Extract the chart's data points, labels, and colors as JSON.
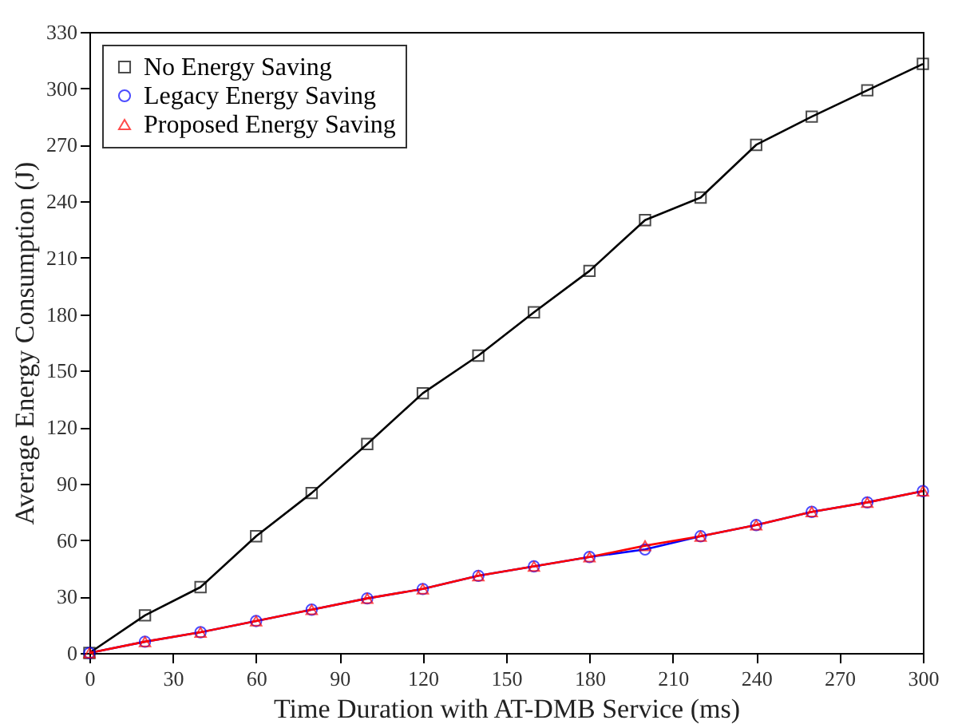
{
  "chart_data": {
    "type": "line",
    "xlabel": "Time Duration with AT-DMB Service (ms)",
    "ylabel": "Average Energy Consumption (J)",
    "x": [
      0,
      20,
      40,
      60,
      80,
      100,
      120,
      140,
      160,
      180,
      200,
      220,
      240,
      260,
      280,
      300
    ],
    "series": [
      {
        "name": "No Energy Saving",
        "color": "#000000",
        "marker": "square",
        "values": [
          0,
          20,
          35,
          62,
          85,
          111,
          138,
          158,
          181,
          203,
          230,
          242,
          270,
          285,
          299,
          313
        ]
      },
      {
        "name": "Legacy Energy Saving",
        "color": "#0000ff",
        "marker": "circle",
        "values": [
          0,
          6,
          11,
          17,
          23,
          29,
          34,
          41,
          46,
          51,
          55,
          62,
          68,
          75,
          80,
          86
        ]
      },
      {
        "name": "Proposed Energy Saving",
        "color": "#ff0000",
        "marker": "triangle",
        "values": [
          0,
          6,
          11,
          17,
          23,
          29,
          34,
          41,
          46,
          51,
          57,
          62,
          68,
          75,
          80,
          86
        ]
      }
    ],
    "xlim": [
      0,
      300
    ],
    "xticks": [
      0,
      30,
      60,
      90,
      120,
      150,
      180,
      210,
      240,
      270,
      300
    ],
    "ylim": [
      0,
      330
    ],
    "yticks": [
      0,
      30,
      60,
      90,
      120,
      150,
      180,
      210,
      240,
      270,
      300,
      330
    ],
    "grid": false,
    "legend": "top left",
    "line_style": "solid"
  }
}
